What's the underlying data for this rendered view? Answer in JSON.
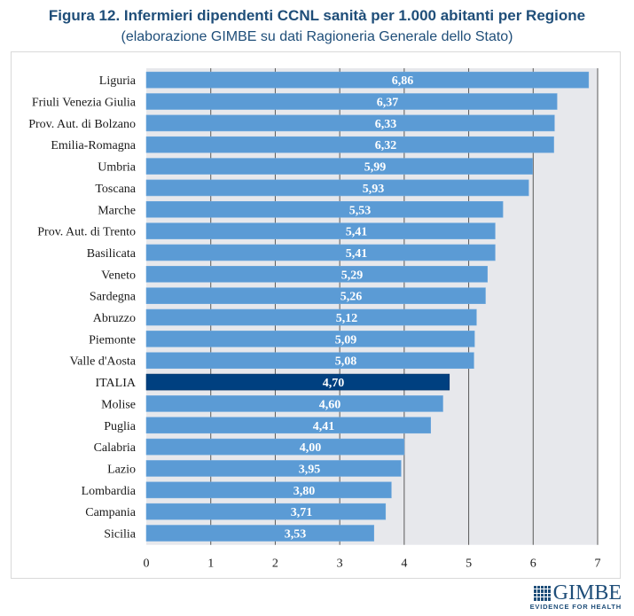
{
  "title": "Figura 12. Infermieri dipendenti CCNL sanità per 1.000 abitanti per Regione",
  "subtitle": "(elaborazione GIMBE su dati Ragioneria Generale dello Stato)",
  "logo": {
    "name": "GIMBE",
    "tagline": "EVIDENCE FOR HEALTH",
    "icon": "grid-logo-icon"
  },
  "colors": {
    "bar": "#5b9bd5",
    "highlight": "#004080",
    "plot_bg": "#e7e8ec",
    "grid": "#595959",
    "title": "#1f4e79"
  },
  "chart_data": {
    "type": "bar",
    "orientation": "horizontal",
    "title": "Figura 12. Infermieri dipendenti CCNL sanità per 1.000 abitanti per Regione",
    "subtitle": "(elaborazione GIMBE su dati Ragioneria Generale dello Stato)",
    "xlabel": "",
    "ylabel": "",
    "xlim": [
      0,
      7
    ],
    "xticks": [
      "0",
      "1",
      "2",
      "3",
      "4",
      "5",
      "6",
      "7"
    ],
    "grid": true,
    "legend": "none",
    "highlight_category": "ITALIA",
    "categories": [
      "Liguria",
      "Friuli Venezia Giulia",
      "Prov. Aut. di Bolzano",
      "Emilia-Romagna",
      "Umbria",
      "Toscana",
      "Marche",
      "Prov. Aut. di Trento",
      "Basilicata",
      "Veneto",
      "Sardegna",
      "Abruzzo",
      "Piemonte",
      "Valle d'Aosta",
      "ITALIA",
      "Molise",
      "Puglia",
      "Calabria",
      "Lazio",
      "Lombardia",
      "Campania",
      "Sicilia"
    ],
    "values": [
      6.86,
      6.37,
      6.33,
      6.32,
      5.99,
      5.93,
      5.53,
      5.41,
      5.41,
      5.29,
      5.26,
      5.12,
      5.09,
      5.08,
      4.7,
      4.6,
      4.41,
      4.0,
      3.95,
      3.8,
      3.71,
      3.53
    ],
    "value_labels": [
      "6,86",
      "6,37",
      "6,33",
      "6,32",
      "5,99",
      "5,93",
      "5,53",
      "5,41",
      "5,41",
      "5,29",
      "5,26",
      "5,12",
      "5,09",
      "5,08",
      "4,70",
      "4,60",
      "4,41",
      "4,00",
      "3,95",
      "3,80",
      "3,71",
      "3,53"
    ]
  }
}
